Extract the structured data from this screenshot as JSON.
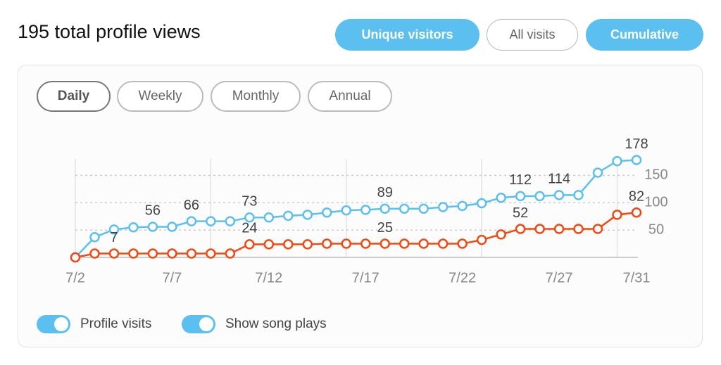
{
  "header": {
    "title": "195 total profile views",
    "buttons": [
      "Unique visitors",
      "All visits",
      "Cumulative"
    ]
  },
  "tabs": [
    "Daily",
    "Weekly",
    "Monthly",
    "Annual"
  ],
  "chart_data": {
    "type": "line",
    "categories": [
      "7/2",
      null,
      null,
      null,
      null,
      "7/7",
      null,
      null,
      null,
      null,
      "7/12",
      null,
      null,
      null,
      null,
      "7/17",
      null,
      null,
      null,
      null,
      "7/22",
      null,
      null,
      null,
      null,
      "7/27",
      null,
      null,
      null,
      "7/31"
    ],
    "series": [
      {
        "name": "Profile visits",
        "color": "#5bbfef",
        "values": [
          0,
          37,
          51,
          55,
          56,
          56,
          66,
          66,
          66,
          73,
          73,
          76,
          78,
          82,
          86,
          87,
          89,
          89,
          89,
          92,
          94,
          99,
          109,
          112,
          112,
          114,
          114,
          155,
          176,
          178
        ],
        "value_labels": [
          null,
          null,
          null,
          null,
          "56",
          null,
          "66",
          null,
          null,
          "73",
          null,
          null,
          null,
          null,
          null,
          null,
          "89",
          null,
          null,
          null,
          null,
          null,
          null,
          "112",
          null,
          "114",
          null,
          null,
          null,
          "178"
        ]
      },
      {
        "name": "Show song plays",
        "color": "#f04a13",
        "values": [
          0,
          7,
          7,
          7,
          7,
          7,
          7,
          7,
          7,
          24,
          24,
          24,
          24,
          25,
          25,
          25,
          25,
          25,
          25,
          25,
          25,
          32,
          42,
          52,
          52,
          52,
          52,
          52,
          78,
          82
        ],
        "value_labels": [
          null,
          null,
          "7",
          null,
          null,
          null,
          null,
          null,
          null,
          "24",
          null,
          null,
          null,
          null,
          null,
          null,
          "25",
          null,
          null,
          null,
          null,
          null,
          null,
          "52",
          null,
          null,
          null,
          null,
          null,
          "82"
        ]
      }
    ],
    "ylim": [
      0,
      180
    ],
    "yticks": [
      50,
      100,
      150
    ],
    "grid": true
  }
}
